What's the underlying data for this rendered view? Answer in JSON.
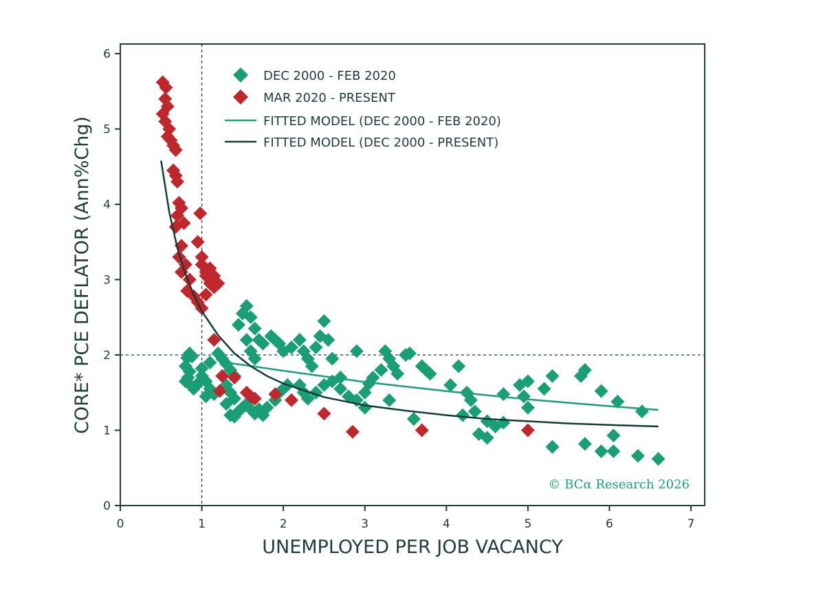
{
  "chart_data": {
    "type": "scatter",
    "xlabel": "UNEMPLOYED PER JOB VACANCY",
    "ylabel": "CORE* PCE DEFLATOR (Ann%Chg)",
    "xlim": [
      0,
      7
    ],
    "ylim": [
      0,
      6
    ],
    "x_ticks": [
      "0",
      "1",
      "2",
      "3",
      "4",
      "5",
      "6",
      "7"
    ],
    "y_ticks": [
      "0",
      "1",
      "2",
      "3",
      "4",
      "5",
      "6"
    ],
    "reference_lines": {
      "x": 1,
      "y": 2
    },
    "legend_position": "top-left",
    "credit": "© BCα Research 2026",
    "colors": {
      "pre": "#1a9e74",
      "post": "#c0272d",
      "fit_pre": "#1a9e74",
      "fit_all": "#133a36"
    },
    "series": [
      {
        "name": "DEC 2000 - FEB 2020",
        "kind": "scatter",
        "color": "#1a9e74",
        "points": [
          [
            0.82,
            1.96
          ],
          [
            0.85,
            2.02
          ],
          [
            0.88,
            1.98
          ],
          [
            0.8,
            1.85
          ],
          [
            0.85,
            1.78
          ],
          [
            0.83,
            1.7
          ],
          [
            0.8,
            1.65
          ],
          [
            0.86,
            1.6
          ],
          [
            0.9,
            1.55
          ],
          [
            0.95,
            1.62
          ],
          [
            1.0,
            1.72
          ],
          [
            1.05,
            1.65
          ],
          [
            1.1,
            1.55
          ],
          [
            1.15,
            1.48
          ],
          [
            1.05,
            1.45
          ],
          [
            1.0,
            1.82
          ],
          [
            1.1,
            1.9
          ],
          [
            1.2,
            2.02
          ],
          [
            1.25,
            1.95
          ],
          [
            1.3,
            1.88
          ],
          [
            1.35,
            1.8
          ],
          [
            1.4,
            1.72
          ],
          [
            1.3,
            1.6
          ],
          [
            1.35,
            1.5
          ],
          [
            1.4,
            1.42
          ],
          [
            1.3,
            1.35
          ],
          [
            1.35,
            1.2
          ],
          [
            1.4,
            1.18
          ],
          [
            1.45,
            1.25
          ],
          [
            1.5,
            1.3
          ],
          [
            1.55,
            1.35
          ],
          [
            1.6,
            1.28
          ],
          [
            1.65,
            1.22
          ],
          [
            1.7,
            1.28
          ],
          [
            1.75,
            1.2
          ],
          [
            1.8,
            1.3
          ],
          [
            1.9,
            1.4
          ],
          [
            1.95,
            1.5
          ],
          [
            2.0,
            1.55
          ],
          [
            2.05,
            1.6
          ],
          [
            1.45,
            2.4
          ],
          [
            1.5,
            2.55
          ],
          [
            1.55,
            2.65
          ],
          [
            1.6,
            2.5
          ],
          [
            1.65,
            2.35
          ],
          [
            1.7,
            2.2
          ],
          [
            1.55,
            2.2
          ],
          [
            1.6,
            2.05
          ],
          [
            1.65,
            1.95
          ],
          [
            1.75,
            2.15
          ],
          [
            1.85,
            2.25
          ],
          [
            1.9,
            2.2
          ],
          [
            1.95,
            2.15
          ],
          [
            2.0,
            2.05
          ],
          [
            2.1,
            2.1
          ],
          [
            2.2,
            2.2
          ],
          [
            2.25,
            2.05
          ],
          [
            2.3,
            1.95
          ],
          [
            2.35,
            1.85
          ],
          [
            2.4,
            2.1
          ],
          [
            2.45,
            2.25
          ],
          [
            2.5,
            2.45
          ],
          [
            2.55,
            2.2
          ],
          [
            2.6,
            1.95
          ],
          [
            2.2,
            1.6
          ],
          [
            2.25,
            1.5
          ],
          [
            2.3,
            1.42
          ],
          [
            2.4,
            1.5
          ],
          [
            2.5,
            1.6
          ],
          [
            2.6,
            1.65
          ],
          [
            2.7,
            1.55
          ],
          [
            2.8,
            1.45
          ],
          [
            2.9,
            1.4
          ],
          [
            3.0,
            1.5
          ],
          [
            3.05,
            1.62
          ],
          [
            3.1,
            1.7
          ],
          [
            3.2,
            1.8
          ],
          [
            3.25,
            2.05
          ],
          [
            3.3,
            1.95
          ],
          [
            3.35,
            1.85
          ],
          [
            3.4,
            1.75
          ],
          [
            3.5,
            2.0
          ],
          [
            3.55,
            2.02
          ],
          [
            3.6,
            1.15
          ],
          [
            3.7,
            1.85
          ],
          [
            3.75,
            1.8
          ],
          [
            3.8,
            1.75
          ],
          [
            2.9,
            2.05
          ],
          [
            2.7,
            1.7
          ],
          [
            3.0,
            1.3
          ],
          [
            3.3,
            1.4
          ],
          [
            4.05,
            1.6
          ],
          [
            4.15,
            1.85
          ],
          [
            4.25,
            1.5
          ],
          [
            4.3,
            1.4
          ],
          [
            4.35,
            1.25
          ],
          [
            4.2,
            1.2
          ],
          [
            4.4,
            0.95
          ],
          [
            4.5,
            0.9
          ],
          [
            4.5,
            1.12
          ],
          [
            4.6,
            1.05
          ],
          [
            4.7,
            1.1
          ],
          [
            4.7,
            1.48
          ],
          [
            4.9,
            1.6
          ],
          [
            4.95,
            1.45
          ],
          [
            5.0,
            1.3
          ],
          [
            5.0,
            1.65
          ],
          [
            5.2,
            1.55
          ],
          [
            5.3,
            1.72
          ],
          [
            5.3,
            0.78
          ],
          [
            5.65,
            1.72
          ],
          [
            5.7,
            1.8
          ],
          [
            5.7,
            0.82
          ],
          [
            5.9,
            0.72
          ],
          [
            5.9,
            1.52
          ],
          [
            6.05,
            0.93
          ],
          [
            6.05,
            0.72
          ],
          [
            6.1,
            1.38
          ],
          [
            6.35,
            0.66
          ],
          [
            6.4,
            1.25
          ],
          [
            6.6,
            0.62
          ]
        ]
      },
      {
        "name": "MAR 2020 - PRESENT",
        "kind": "scatter",
        "color": "#c0272d",
        "points": [
          [
            0.52,
            5.62
          ],
          [
            0.56,
            5.55
          ],
          [
            0.55,
            5.4
          ],
          [
            0.58,
            5.3
          ],
          [
            0.52,
            5.2
          ],
          [
            0.55,
            5.1
          ],
          [
            0.6,
            5.0
          ],
          [
            0.58,
            4.9
          ],
          [
            0.62,
            4.85
          ],
          [
            0.65,
            4.78
          ],
          [
            0.68,
            4.72
          ],
          [
            0.65,
            4.45
          ],
          [
            0.68,
            4.38
          ],
          [
            0.7,
            4.3
          ],
          [
            0.72,
            4.02
          ],
          [
            0.75,
            3.95
          ],
          [
            0.7,
            3.85
          ],
          [
            0.78,
            3.75
          ],
          [
            0.68,
            3.7
          ],
          [
            0.75,
            3.45
          ],
          [
            0.72,
            3.3
          ],
          [
            0.8,
            3.2
          ],
          [
            0.75,
            3.1
          ],
          [
            0.85,
            3.0
          ],
          [
            0.82,
            2.85
          ],
          [
            0.9,
            2.78
          ],
          [
            0.95,
            2.7
          ],
          [
            1.0,
            2.62
          ],
          [
            1.05,
            2.8
          ],
          [
            1.1,
            2.95
          ],
          [
            1.15,
            2.9
          ],
          [
            1.05,
            3.05
          ],
          [
            1.1,
            3.15
          ],
          [
            1.0,
            3.3
          ],
          [
            0.95,
            3.5
          ],
          [
            0.98,
            3.88
          ],
          [
            1.0,
            3.2
          ],
          [
            1.05,
            3.1
          ],
          [
            1.15,
            3.05
          ],
          [
            1.2,
            2.95
          ],
          [
            1.15,
            2.2
          ],
          [
            1.25,
            1.72
          ],
          [
            1.22,
            1.52
          ],
          [
            1.4,
            1.7
          ],
          [
            1.55,
            1.5
          ],
          [
            1.6,
            1.45
          ],
          [
            1.65,
            1.42
          ],
          [
            1.9,
            1.48
          ],
          [
            2.1,
            1.4
          ],
          [
            2.5,
            1.22
          ],
          [
            2.85,
            0.98
          ],
          [
            3.7,
            1.0
          ],
          [
            5.0,
            1.0
          ]
        ]
      },
      {
        "name": "FITTED MODEL (DEC 2000 - FEB 2020)",
        "kind": "line",
        "color": "#1a9e74",
        "points": [
          [
            1.3,
            1.9
          ],
          [
            2.0,
            1.79
          ],
          [
            3.0,
            1.64
          ],
          [
            4.0,
            1.52
          ],
          [
            5.0,
            1.41
          ],
          [
            6.0,
            1.32
          ],
          [
            6.6,
            1.27
          ]
        ]
      },
      {
        "name": "FITTED MODEL (DEC 2000 - PRESENT)",
        "kind": "line",
        "color": "#133a36",
        "points": [
          [
            0.5,
            4.58
          ],
          [
            0.6,
            3.9
          ],
          [
            0.7,
            3.42
          ],
          [
            0.8,
            3.07
          ],
          [
            0.9,
            2.8
          ],
          [
            1.0,
            2.58
          ],
          [
            1.2,
            2.26
          ],
          [
            1.4,
            2.02
          ],
          [
            1.6,
            1.85
          ],
          [
            1.8,
            1.72
          ],
          [
            2.0,
            1.62
          ],
          [
            2.5,
            1.44
          ],
          [
            3.0,
            1.33
          ],
          [
            3.5,
            1.26
          ],
          [
            4.0,
            1.2
          ],
          [
            4.5,
            1.15
          ],
          [
            5.0,
            1.12
          ],
          [
            5.5,
            1.09
          ],
          [
            6.0,
            1.07
          ],
          [
            6.6,
            1.05
          ]
        ]
      }
    ]
  }
}
